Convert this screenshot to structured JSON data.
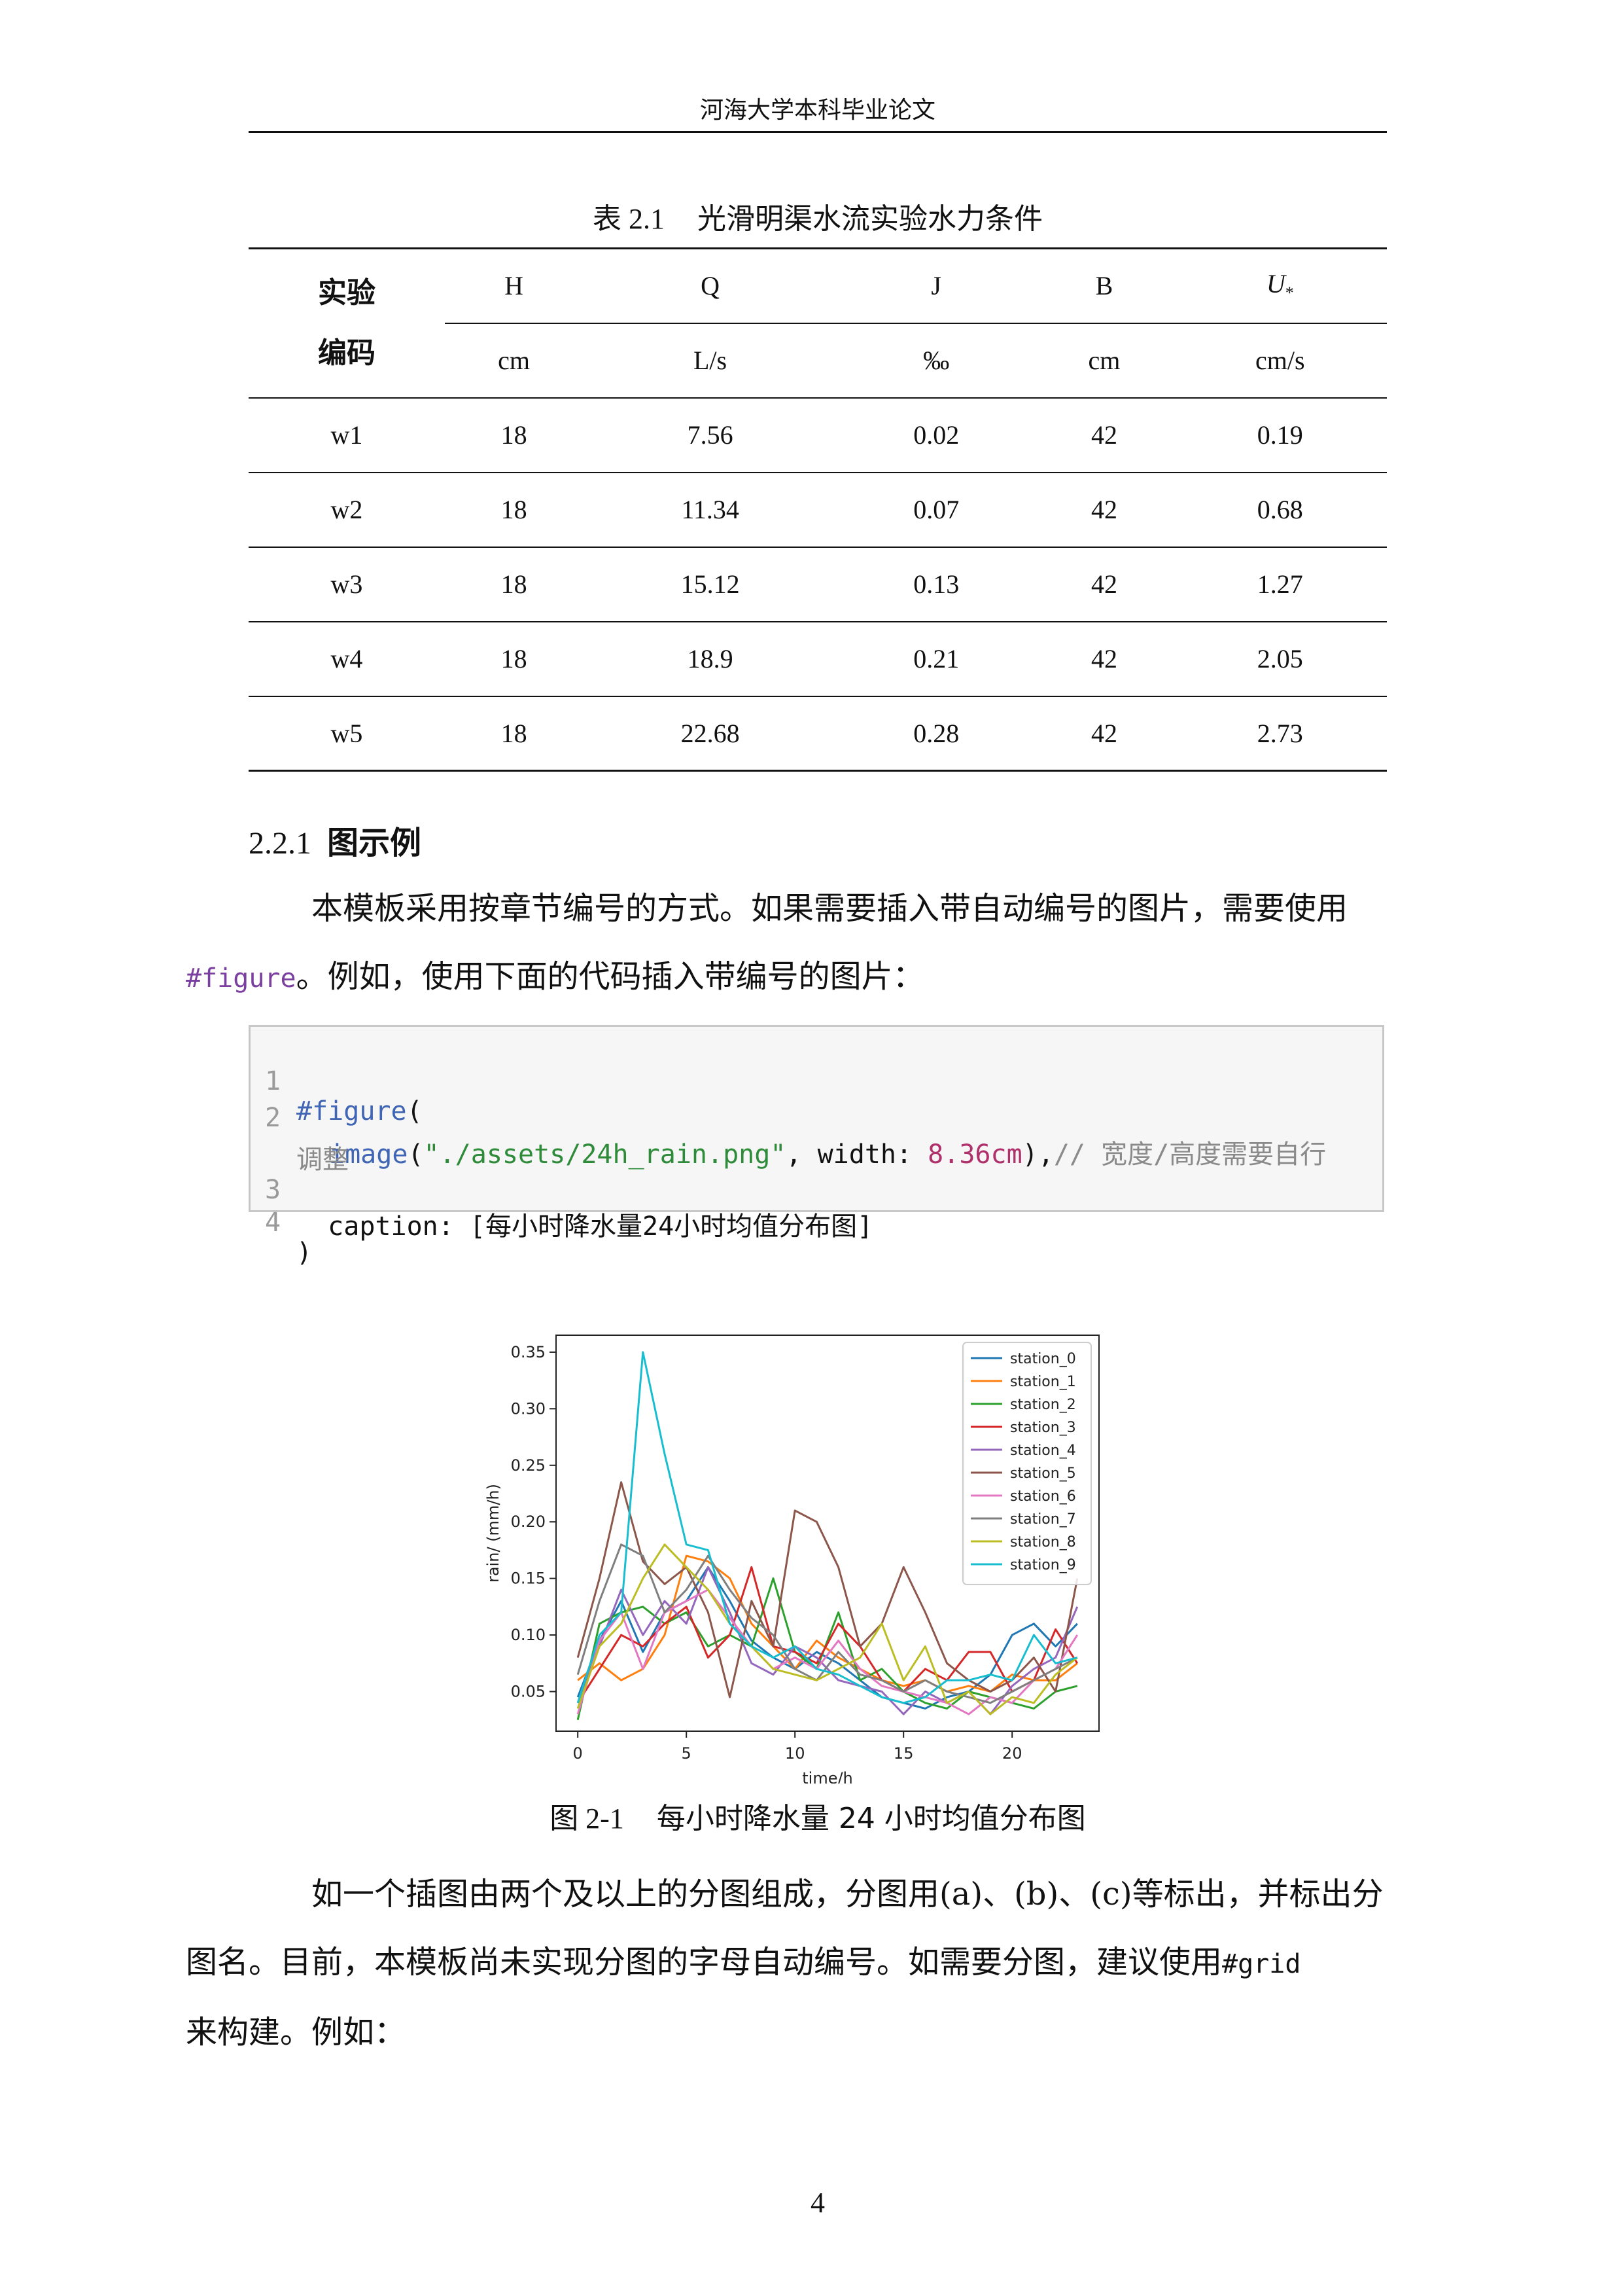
{
  "running_header": "河海大学本科毕业论文",
  "table": {
    "caption_num": "表 2.1",
    "caption_text": "光滑明渠水流实验水力条件",
    "code_head_line1": "实验",
    "code_head_line2": "编码",
    "columns": [
      {
        "symbol": "H",
        "unit": "cm"
      },
      {
        "symbol": "Q",
        "unit": "L/s"
      },
      {
        "symbol": "J",
        "unit": "‰"
      },
      {
        "symbol": "B",
        "unit": "cm"
      },
      {
        "symbol": "U",
        "sub": "*",
        "unit": "cm/s"
      }
    ],
    "rows": [
      [
        "w1",
        "18",
        "7.56",
        "0.02",
        "42",
        "0.19"
      ],
      [
        "w2",
        "18",
        "11.34",
        "0.07",
        "42",
        "0.68"
      ],
      [
        "w3",
        "18",
        "15.12",
        "0.13",
        "42",
        "1.27"
      ],
      [
        "w4",
        "18",
        "18.9",
        "0.21",
        "42",
        "2.05"
      ],
      [
        "w5",
        "18",
        "22.68",
        "0.28",
        "42",
        "2.73"
      ]
    ]
  },
  "section": {
    "number": "2.2.1",
    "title": "图示例"
  },
  "paragraph1": {
    "line1": "本模板采用按章节编号的方式。如果需要插入带自动编号的图片，需要使用",
    "code": "#figure",
    "line2_rest": "。例如，使用下面的代码插入带编号的图片："
  },
  "code_block": {
    "line_numbers": [
      "1",
      "2",
      "3",
      "4"
    ],
    "l1_fn": "#figure",
    "l1_paren": "(",
    "l2_fn": "image",
    "l2_open": "(",
    "l2_str": "\"./assets/24h_rain.png\"",
    "l2_mid": ", width: ",
    "l2_num": "8.36cm",
    "l2_close": "),",
    "l2_comment": "// 宽度/高度需要自行",
    "l2_comment_wrap": "调整",
    "l3_text": "  caption: [每小时降水量24小时均值分布图]",
    "l4_text": ")"
  },
  "chart_data": {
    "type": "line",
    "xlabel": "time/h",
    "ylabel": "rain/ (mm/h)",
    "xlim": [
      -1,
      24
    ],
    "ylim": [
      0.015,
      0.365
    ],
    "xticks": [
      0,
      5,
      10,
      15,
      20
    ],
    "yticks": [
      0.05,
      0.1,
      0.15,
      0.2,
      0.25,
      0.3,
      0.35
    ],
    "ytick_labels": [
      "0.05",
      "0.10",
      "0.15",
      "0.20",
      "0.25",
      "0.30",
      "0.35"
    ],
    "grid": false,
    "legend_position": "top-right",
    "x": [
      0,
      1,
      2,
      3,
      4,
      5,
      6,
      7,
      8,
      9,
      10,
      11,
      12,
      13,
      14,
      15,
      16,
      17,
      18,
      19,
      20,
      21,
      22,
      23
    ],
    "series": [
      {
        "name": "station_0",
        "color": "#1f77b4",
        "values": [
          0.045,
          0.095,
          0.13,
          0.085,
          0.12,
          0.13,
          0.16,
          0.13,
          0.095,
          0.08,
          0.07,
          0.085,
          0.075,
          0.06,
          0.045,
          0.04,
          0.035,
          0.045,
          0.05,
          0.065,
          0.1,
          0.11,
          0.09,
          0.11
        ]
      },
      {
        "name": "station_1",
        "color": "#ff7f0e",
        "values": [
          0.06,
          0.075,
          0.06,
          0.07,
          0.1,
          0.17,
          0.165,
          0.15,
          0.11,
          0.09,
          0.07,
          0.095,
          0.08,
          0.07,
          0.06,
          0.055,
          0.06,
          0.05,
          0.055,
          0.05,
          0.065,
          0.06,
          0.06,
          0.075
        ]
      },
      {
        "name": "station_2",
        "color": "#2ca02c",
        "values": [
          0.025,
          0.11,
          0.12,
          0.125,
          0.11,
          0.12,
          0.09,
          0.1,
          0.09,
          0.15,
          0.085,
          0.07,
          0.12,
          0.06,
          0.07,
          0.05,
          0.04,
          0.035,
          0.05,
          0.045,
          0.04,
          0.035,
          0.05,
          0.055
        ]
      },
      {
        "name": "station_3",
        "color": "#d62728",
        "values": [
          0.04,
          0.07,
          0.1,
          0.09,
          0.11,
          0.125,
          0.08,
          0.1,
          0.16,
          0.09,
          0.085,
          0.075,
          0.11,
          0.09,
          0.06,
          0.05,
          0.07,
          0.06,
          0.085,
          0.085,
          0.05,
          0.06,
          0.105,
          0.075
        ]
      },
      {
        "name": "station_4",
        "color": "#9467bd",
        "values": [
          0.04,
          0.09,
          0.14,
          0.1,
          0.13,
          0.11,
          0.16,
          0.12,
          0.075,
          0.065,
          0.09,
          0.08,
          0.06,
          0.055,
          0.05,
          0.03,
          0.05,
          0.04,
          0.05,
          0.03,
          0.055,
          0.07,
          0.08,
          0.125
        ]
      },
      {
        "name": "station_5",
        "color": "#8c564b",
        "values": [
          0.08,
          0.15,
          0.235,
          0.165,
          0.145,
          0.16,
          0.12,
          0.045,
          0.13,
          0.09,
          0.21,
          0.2,
          0.16,
          0.09,
          0.11,
          0.16,
          0.12,
          0.075,
          0.06,
          0.05,
          0.06,
          0.08,
          0.05,
          0.15
        ]
      },
      {
        "name": "station_6",
        "color": "#e377c2",
        "values": [
          0.03,
          0.095,
          0.12,
          0.07,
          0.12,
          0.13,
          0.14,
          0.115,
          0.09,
          0.07,
          0.08,
          0.07,
          0.095,
          0.07,
          0.055,
          0.05,
          0.045,
          0.04,
          0.03,
          0.045,
          0.04,
          0.06,
          0.07,
          0.1
        ]
      },
      {
        "name": "station_7",
        "color": "#7f7f7f",
        "values": [
          0.065,
          0.13,
          0.18,
          0.17,
          0.12,
          0.14,
          0.17,
          0.14,
          0.115,
          0.1,
          0.07,
          0.06,
          0.085,
          0.065,
          0.06,
          0.05,
          0.06,
          0.05,
          0.045,
          0.04,
          0.05,
          0.06,
          0.07,
          0.08
        ]
      },
      {
        "name": "station_8",
        "color": "#bcbd22",
        "values": [
          0.035,
          0.09,
          0.11,
          0.15,
          0.18,
          0.16,
          0.14,
          0.11,
          0.09,
          0.07,
          0.065,
          0.06,
          0.07,
          0.08,
          0.11,
          0.06,
          0.09,
          0.04,
          0.05,
          0.03,
          0.045,
          0.04,
          0.065,
          0.08
        ]
      },
      {
        "name": "station_9",
        "color": "#17becf",
        "values": [
          0.04,
          0.1,
          0.12,
          0.35,
          0.26,
          0.18,
          0.175,
          0.11,
          0.09,
          0.08,
          0.09,
          0.07,
          0.065,
          0.055,
          0.045,
          0.04,
          0.045,
          0.06,
          0.06,
          0.065,
          0.06,
          0.1,
          0.075,
          0.08
        ]
      }
    ]
  },
  "figure": {
    "caption_num": "图 2-1",
    "caption_text": "每小时降水量 24 小时均值分布图"
  },
  "paragraph2": {
    "line1": "如一个插图由两个及以上的分图组成，分图用(a)、(b)、(c)等标出，并标出分",
    "line2_pre": "图名。目前，本模板尚未实现分图的字母自动编号。如需要分图，建议使用",
    "line2_code": "#grid",
    "line3": "来构建。例如："
  },
  "page_number": "4"
}
